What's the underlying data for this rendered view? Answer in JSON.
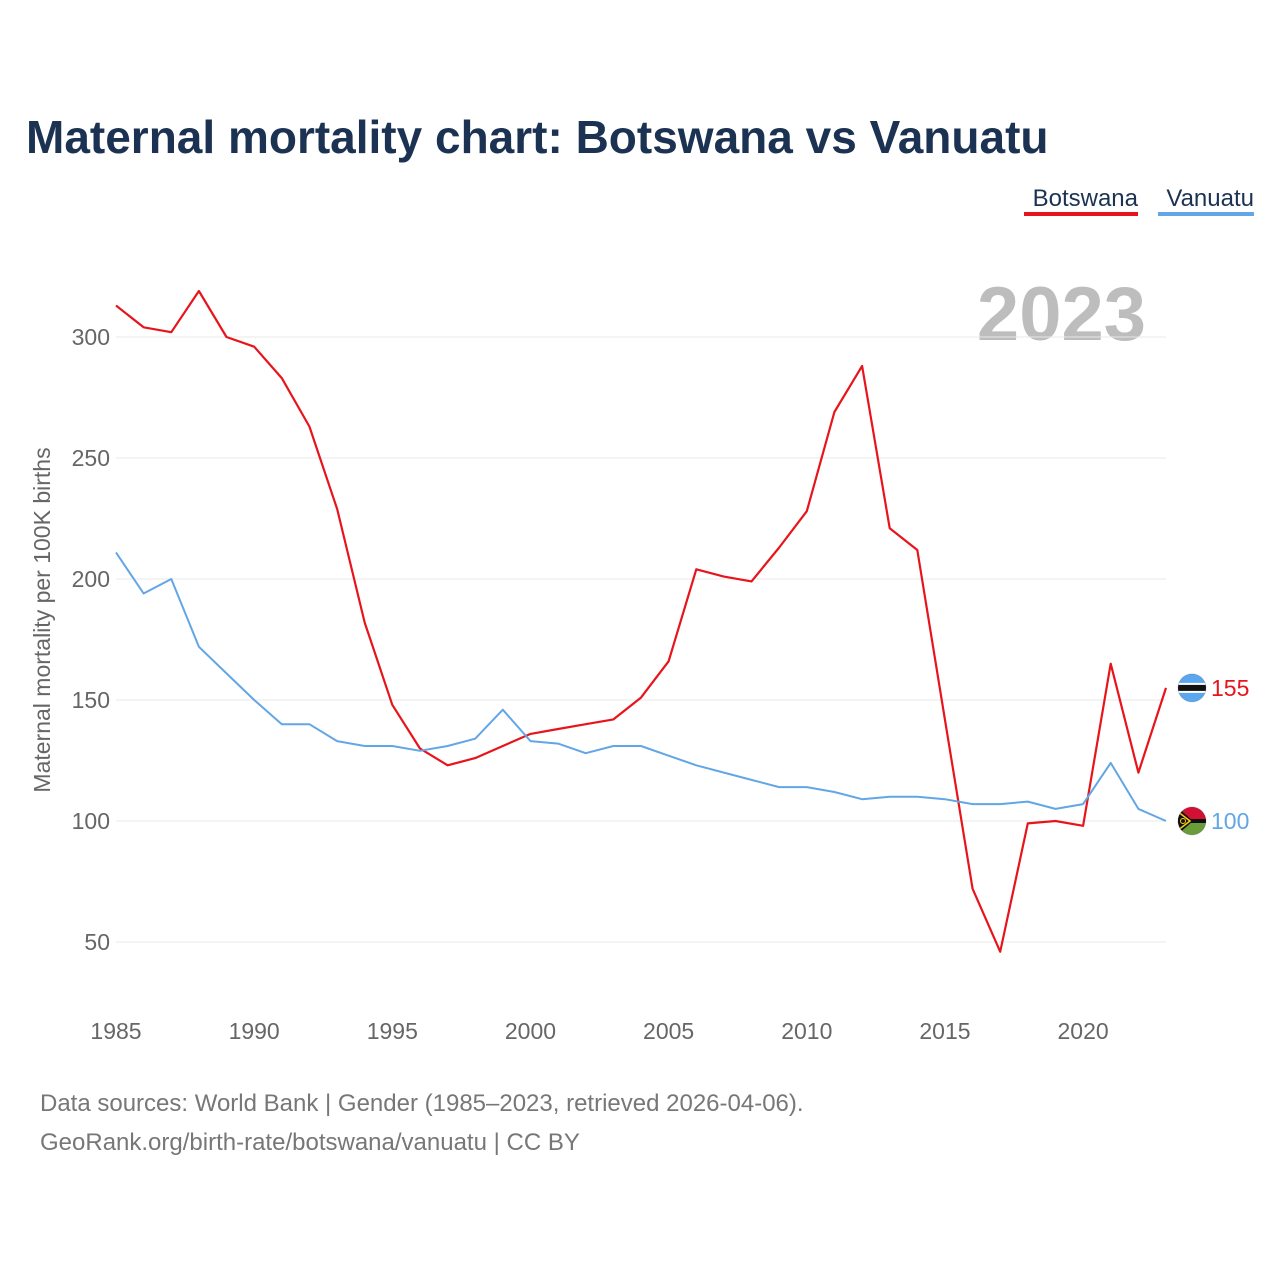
{
  "chart_data": {
    "type": "line",
    "title": "Maternal mortality chart: Botswana vs Vanuatu",
    "ylabel": "Maternal mortality per 100K births",
    "xlabel": "",
    "xlim": [
      1985,
      2023
    ],
    "ylim": [
      30,
      320
    ],
    "x_ticks": [
      1985,
      1990,
      1995,
      2000,
      2005,
      2010,
      2015,
      2020
    ],
    "y_ticks": [
      50,
      100,
      150,
      200,
      250,
      300
    ],
    "year_overlay": "2023",
    "legend_placement": "top-right",
    "x": [
      1985,
      1986,
      1987,
      1988,
      1989,
      1990,
      1991,
      1992,
      1993,
      1994,
      1995,
      1996,
      1997,
      1998,
      1999,
      2000,
      2001,
      2002,
      2003,
      2004,
      2005,
      2006,
      2007,
      2008,
      2009,
      2010,
      2011,
      2012,
      2013,
      2014,
      2015,
      2016,
      2017,
      2018,
      2019,
      2020,
      2021,
      2022,
      2023
    ],
    "series": [
      {
        "name": "Botswana",
        "color": "#e8141b",
        "end_label": "155",
        "flag": "botswana-flag-icon",
        "values": [
          313,
          304,
          302,
          319,
          300,
          296,
          283,
          263,
          229,
          182,
          148,
          130,
          123,
          126,
          131,
          136,
          138,
          140,
          142,
          151,
          166,
          204,
          201,
          199,
          213,
          228,
          269,
          288,
          221,
          212,
          142,
          72,
          46,
          99,
          100,
          98,
          165,
          120,
          155
        ]
      },
      {
        "name": "Vanuatu",
        "color": "#62a6e6",
        "end_label": "100",
        "flag": "vanuatu-flag-icon",
        "values": [
          211,
          194,
          200,
          172,
          161,
          150,
          140,
          140,
          133,
          131,
          131,
          129,
          131,
          134,
          146,
          133,
          132,
          128,
          131,
          131,
          127,
          123,
          120,
          117,
          114,
          114,
          112,
          109,
          110,
          110,
          109,
          107,
          107,
          108,
          105,
          107,
          124,
          105,
          100
        ]
      }
    ]
  },
  "source": {
    "line1": "Data sources: World Bank | Gender (1985–2023, retrieved 2026-04-06).",
    "line2": "GeoRank.org/birth-rate/botswana/vanuatu | CC BY"
  }
}
